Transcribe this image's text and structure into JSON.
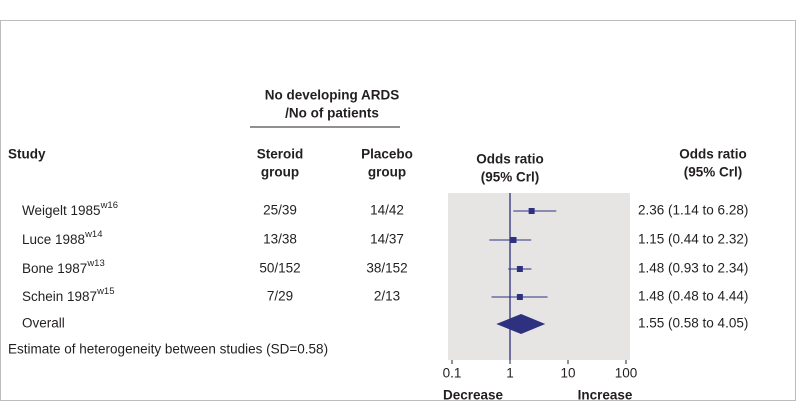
{
  "chart_data": {
    "type": "forest",
    "group_header": [
      "No developing ARDS",
      "/No of patients"
    ],
    "columns": {
      "study": [
        "Study"
      ],
      "steroid": [
        "Steroid",
        "group"
      ],
      "placebo": [
        "Placebo",
        "group"
      ],
      "plot": [
        "Odds ratio",
        "(95% Crl)"
      ],
      "label": [
        "Odds ratio",
        "(95% Crl)"
      ]
    },
    "rows": [
      {
        "study": "Weigelt 1985",
        "ref": "w16",
        "steroid": "25/39",
        "placebo": "14/42",
        "estimate": 2.36,
        "lower": 1.14,
        "upper": 6.28,
        "label": "2.36 (1.14 to 6.28)"
      },
      {
        "study": "Luce 1988",
        "ref": "w14",
        "steroid": "13/38",
        "placebo": "14/37",
        "estimate": 1.15,
        "lower": 0.44,
        "upper": 2.32,
        "label": "1.15 (0.44 to 2.32)"
      },
      {
        "study": "Bone 1987",
        "ref": "w13",
        "steroid": "50/152",
        "placebo": "38/152",
        "estimate": 1.48,
        "lower": 0.93,
        "upper": 2.34,
        "label": "1.48 (0.93 to 2.34)"
      },
      {
        "study": "Schein 1987",
        "ref": "w15",
        "steroid": "7/29",
        "placebo": "2/13",
        "estimate": 1.48,
        "lower": 0.48,
        "upper": 4.44,
        "label": "1.48 (0.48 to 4.44)"
      }
    ],
    "overall": {
      "study": "Overall",
      "estimate": 1.55,
      "lower": 0.58,
      "upper": 4.05,
      "label": "1.55 (0.58 to 4.05)"
    },
    "note": "Estimate of heterogeneity between studies (SD=0.58)",
    "xlim": [
      0.1,
      100
    ],
    "xticks": [
      0.1,
      1,
      10,
      100
    ],
    "log_scale": true,
    "reference_line": 1,
    "x_left_label": "Decrease",
    "x_right_label": "Increase",
    "color": "#2e3180",
    "panel_color": "#e7e5e3"
  }
}
